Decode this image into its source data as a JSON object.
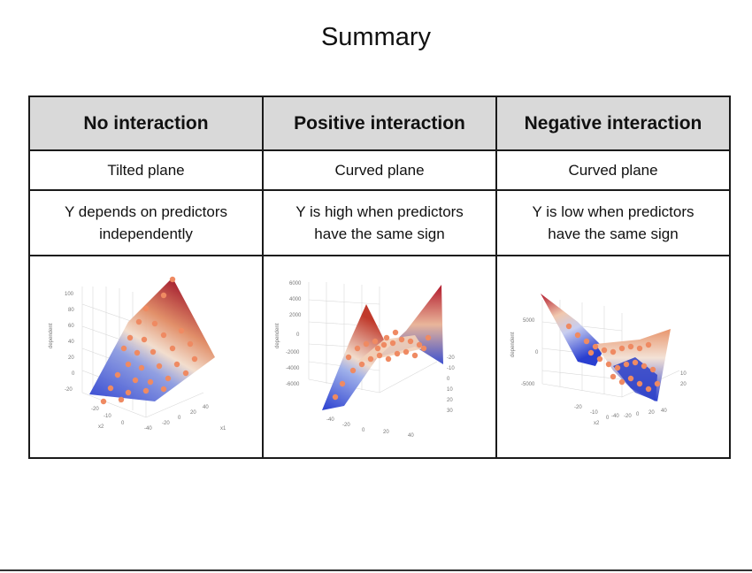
{
  "slide": {
    "title": "Summary"
  },
  "table": {
    "headers": [
      "No interaction",
      "Positive interaction",
      "Negative interaction"
    ],
    "descriptions": [
      "Tilted plane",
      "Curved plane",
      "Curved plane"
    ],
    "explanations": [
      [
        "Y depends on predictors",
        "independently"
      ],
      [
        "Y is high when predictors",
        "have the same sign"
      ],
      [
        "Y is low when predictors",
        "have the same sign"
      ]
    ]
  },
  "plots": {
    "no_interaction": {
      "z_ticks": [
        "100",
        "80",
        "60",
        "40",
        "20",
        "0",
        "-20"
      ],
      "x1_ticks": [
        "-40",
        "-20",
        "0",
        "20",
        "40"
      ],
      "x2_ticks": [
        "-20",
        "-10",
        "0"
      ],
      "z_label": "dependent",
      "x1_label": "x1",
      "x2_label": "x2"
    },
    "positive_interaction": {
      "z_ticks": [
        "6000",
        "4000",
        "2000",
        "0",
        "-2000",
        "-4000",
        "-6000"
      ],
      "x1_ticks": [
        "-40",
        "-20",
        "0",
        "20",
        "40"
      ],
      "x2_ticks": [
        "-20",
        "-10",
        "0",
        "10",
        "20",
        "30"
      ],
      "z_label": "dependent"
    },
    "negative_interaction": {
      "z_ticks": [
        "5000",
        "0",
        "-5000"
      ],
      "x1_ticks": [
        "-40",
        "-20",
        "0",
        "20",
        "40"
      ],
      "x2_ticks": [
        "-20",
        "-10",
        "0",
        "10",
        "20"
      ],
      "z_label": "dependent",
      "x2_label": "x2"
    }
  },
  "colors": {
    "header_bg": "#d9d9d9",
    "surface_high": "#b2182b",
    "surface_mid": "#f4dcc8",
    "surface_low": "#2a3fd0",
    "points": "#ef8a62"
  }
}
